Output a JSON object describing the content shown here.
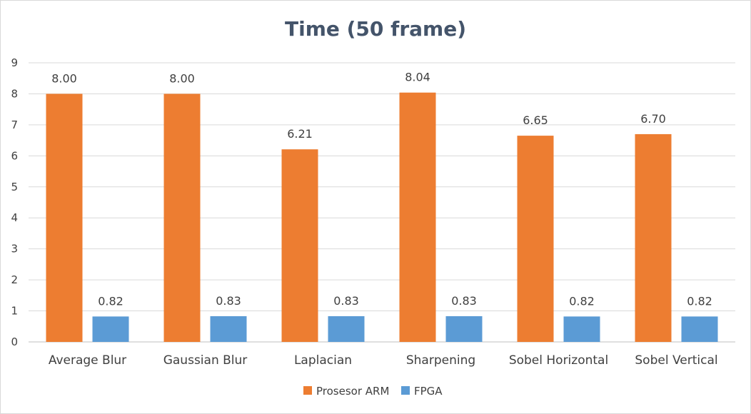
{
  "chart_data": {
    "type": "bar",
    "title": "Time (50 frame)",
    "xlabel": "",
    "ylabel": "",
    "ylim": [
      0,
      9
    ],
    "yticks": [
      0,
      1,
      2,
      3,
      4,
      5,
      6,
      7,
      8,
      9
    ],
    "grid": true,
    "legend_position": "bottom",
    "categories": [
      "Average Blur",
      "Gaussian Blur",
      "Laplacian",
      "Sharpening",
      "Sobel Horizontal",
      "Sobel Vertical"
    ],
    "series": [
      {
        "name": "Prosesor ARM",
        "color": "#ed7d31",
        "values": [
          8.0,
          8.0,
          6.21,
          8.04,
          6.65,
          6.7
        ],
        "labels": [
          "8.00",
          "8.00",
          "6.21",
          "8.04",
          "6.65",
          "6.70"
        ]
      },
      {
        "name": "FPGA",
        "color": "#5b9bd5",
        "values": [
          0.82,
          0.83,
          0.83,
          0.83,
          0.82,
          0.82
        ],
        "labels": [
          "0.82",
          "0.83",
          "0.83",
          "0.83",
          "0.82",
          "0.82"
        ]
      }
    ]
  }
}
